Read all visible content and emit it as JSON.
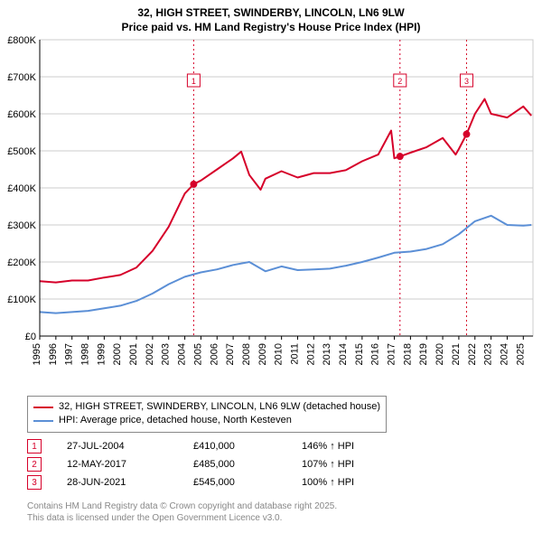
{
  "title_line1": "32, HIGH STREET, SWINDERBY, LINCOLN, LN6 9LW",
  "title_line2": "Price paid vs. HM Land Registry's House Price Index (HPI)",
  "chart": {
    "type": "line",
    "background_color": "#ffffff",
    "plot_bg": "#ffffff",
    "grid_color": "#cccccc",
    "axis_color": "#000000",
    "xlim": [
      1995,
      2025.6
    ],
    "ylim": [
      0,
      800000
    ],
    "ytick_step": 100000,
    "ytick_labels": [
      "£0",
      "£100K",
      "£200K",
      "£300K",
      "£400K",
      "£500K",
      "£600K",
      "£700K",
      "£800K"
    ],
    "xticks": [
      1995,
      1996,
      1997,
      1998,
      1999,
      2000,
      2001,
      2002,
      2003,
      2004,
      2005,
      2006,
      2007,
      2008,
      2009,
      2010,
      2011,
      2012,
      2013,
      2014,
      2015,
      2016,
      2017,
      2018,
      2019,
      2020,
      2021,
      2022,
      2023,
      2024,
      2025
    ],
    "tick_fontsize": 11,
    "series": [
      {
        "name": "price_paid",
        "color": "#d6002a",
        "width": 2,
        "x": [
          1995,
          1996,
          1997,
          1998,
          1999,
          2000,
          2001,
          2002,
          2003,
          2004,
          2004.55,
          2005,
          2006,
          2007,
          2007.5,
          2008,
          2008.7,
          2009,
          2010,
          2011,
          2012,
          2013,
          2014,
          2015,
          2016,
          2016.8,
          2017,
          2017.35,
          2018,
          2019,
          2020,
          2020.8,
          2021,
          2021.48,
          2022,
          2022.6,
          2023,
          2024,
          2025,
          2025.5
        ],
        "y": [
          148000,
          145000,
          150000,
          150000,
          158000,
          165000,
          185000,
          230000,
          295000,
          385000,
          410000,
          420000,
          450000,
          480000,
          498000,
          435000,
          395000,
          425000,
          445000,
          428000,
          440000,
          440000,
          448000,
          472000,
          490000,
          555000,
          480000,
          485000,
          495000,
          510000,
          535000,
          490000,
          505000,
          545000,
          600000,
          640000,
          600000,
          590000,
          620000,
          595000
        ]
      },
      {
        "name": "hpi",
        "color": "#5b8fd6",
        "width": 2,
        "x": [
          1995,
          1996,
          1997,
          1998,
          1999,
          2000,
          2001,
          2002,
          2003,
          2004,
          2005,
          2006,
          2007,
          2008,
          2009,
          2010,
          2011,
          2012,
          2013,
          2014,
          2015,
          2016,
          2017,
          2018,
          2019,
          2020,
          2021,
          2022,
          2023,
          2024,
          2025,
          2025.5
        ],
        "y": [
          65000,
          62000,
          65000,
          68000,
          75000,
          82000,
          95000,
          115000,
          140000,
          160000,
          172000,
          180000,
          192000,
          200000,
          175000,
          188000,
          178000,
          180000,
          182000,
          190000,
          200000,
          212000,
          225000,
          228000,
          235000,
          248000,
          275000,
          310000,
          325000,
          300000,
          298000,
          300000
        ]
      }
    ],
    "markers": [
      {
        "label": "1",
        "color": "#d6002a",
        "x": 2004.55,
        "y_dot": 410000,
        "box_offset_y": -38
      },
      {
        "label": "2",
        "color": "#d6002a",
        "x": 2017.35,
        "y_dot": 485000,
        "box_offset_y": -38
      },
      {
        "label": "3",
        "color": "#d6002a",
        "x": 2021.48,
        "y_dot": 545000,
        "box_offset_y": -38
      }
    ],
    "marker_vline_color": "#d6002a",
    "marker_vline_dash": "2,3"
  },
  "legend": {
    "items": [
      {
        "color": "#d6002a",
        "label": "32, HIGH STREET, SWINDERBY, LINCOLN, LN6 9LW (detached house)"
      },
      {
        "color": "#5b8fd6",
        "label": "HPI: Average price, detached house, North Kesteven"
      }
    ]
  },
  "marker_rows": [
    {
      "n": "1",
      "color": "#d6002a",
      "date": "27-JUL-2004",
      "price": "£410,000",
      "pct": "146% ↑ HPI"
    },
    {
      "n": "2",
      "color": "#d6002a",
      "date": "12-MAY-2017",
      "price": "£485,000",
      "pct": "107% ↑ HPI"
    },
    {
      "n": "3",
      "color": "#d6002a",
      "date": "28-JUN-2021",
      "price": "£545,000",
      "pct": "100% ↑ HPI"
    }
  ],
  "footer_line1": "Contains HM Land Registry data © Crown copyright and database right 2025.",
  "footer_line2": "This data is licensed under the Open Government Licence v3.0."
}
